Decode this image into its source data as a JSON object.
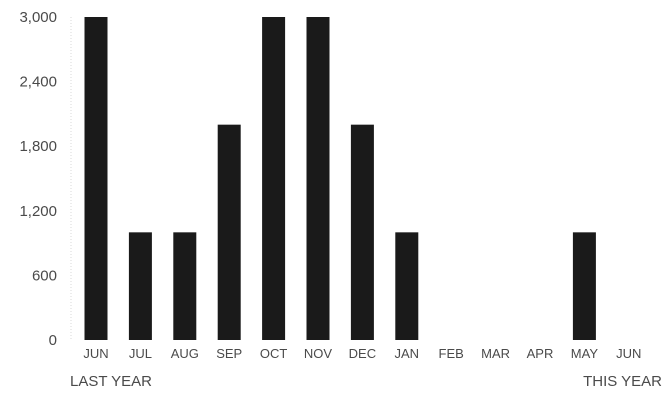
{
  "chart_data": {
    "type": "bar",
    "categories": [
      "JUN",
      "JUL",
      "AUG",
      "SEP",
      "OCT",
      "NOV",
      "DEC",
      "JAN",
      "FEB",
      "MAR",
      "APR",
      "MAY",
      "JUN"
    ],
    "values": [
      3000,
      1000,
      1000,
      2000,
      3000,
      3000,
      2000,
      1000,
      0,
      0,
      0,
      1000,
      0
    ],
    "yticks": [
      "3,000",
      "2,400",
      "1,800",
      "1,200",
      "600",
      "0"
    ],
    "ytick_values": [
      3000,
      2400,
      1800,
      1200,
      600,
      0
    ],
    "ylim": [
      0,
      3000
    ],
    "period_labels": {
      "start": "LAST YEAR",
      "end": "THIS YEAR"
    },
    "title": "",
    "xlabel": "",
    "ylabel": "",
    "grid": false,
    "bar_color": "#1a1a1a"
  }
}
